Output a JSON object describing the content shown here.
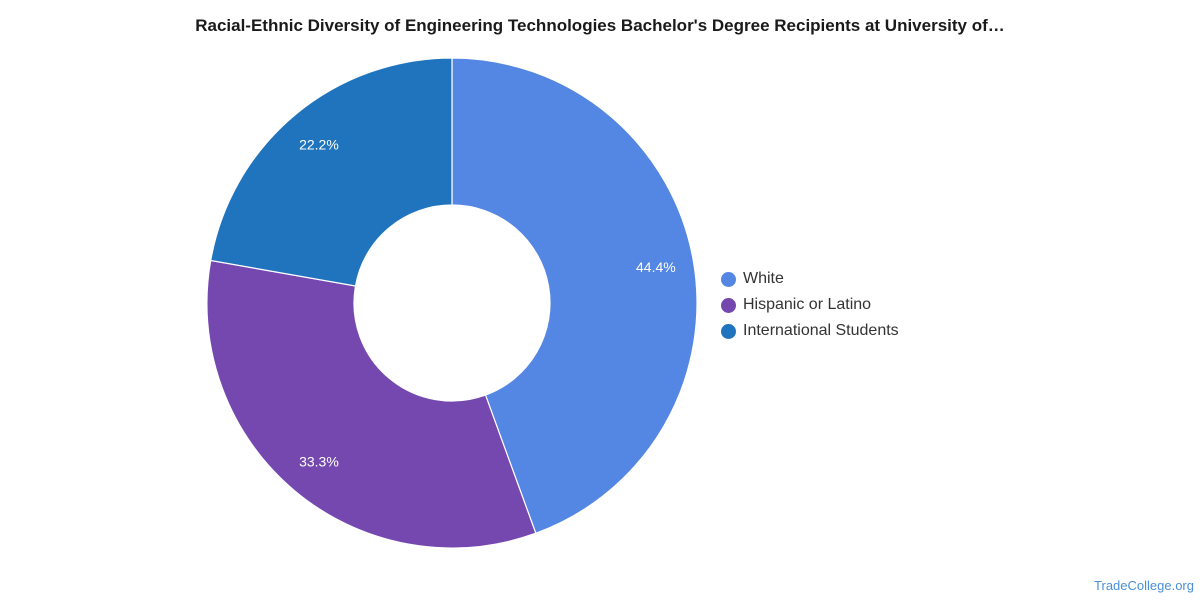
{
  "chart_data": {
    "type": "pie",
    "title": "Racial-Ethnic Diversity of Engineering Technologies Bachelor's Degree Recipients at University of…",
    "categories": [
      "White",
      "Hispanic or Latino",
      "International Students"
    ],
    "values": [
      44.4,
      33.3,
      22.2
    ],
    "labels": [
      "44.4%",
      "33.3%",
      "22.2%"
    ],
    "colors": [
      "#5486e3",
      "#7548b0",
      "#1f74bd"
    ],
    "legend_position": "right",
    "style": "donut"
  },
  "source": "TradeCollege.org"
}
